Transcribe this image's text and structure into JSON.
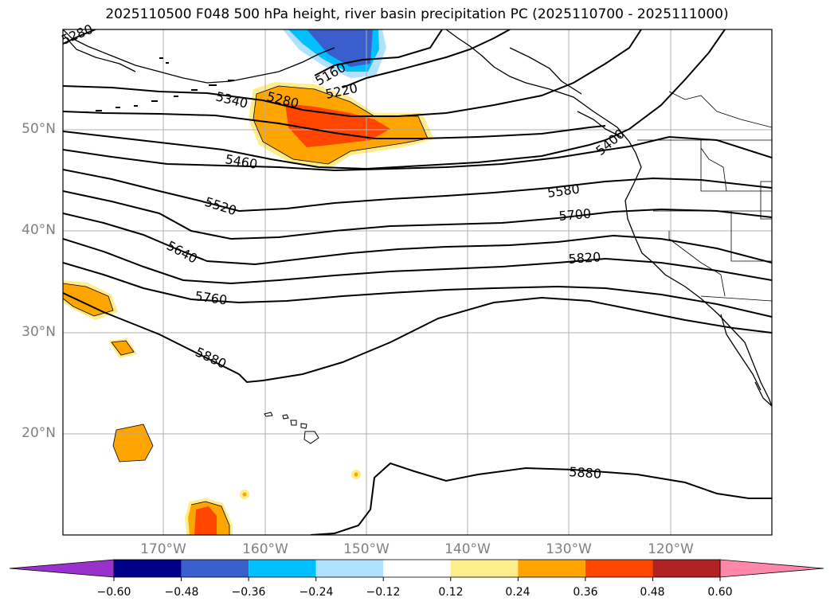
{
  "title": "2025110500 F048 500 hPa height, river basin precipitation PC (2025110700 - 2025111000)",
  "lat_labels": [
    "50°N",
    "40°N",
    "30°N",
    "20°N"
  ],
  "lon_labels": [
    "170°W",
    "160°W",
    "150°W",
    "140°W",
    "130°W",
    "120°W"
  ],
  "contour_labels": [
    "5280",
    "5160",
    "5220",
    "5340",
    "5280",
    "5400",
    "5460",
    "5520",
    "5580",
    "5640",
    "5700",
    "5760",
    "5820",
    "5880",
    "5880"
  ],
  "colorbar": {
    "ticks": [
      "−0.60",
      "−0.48",
      "−0.36",
      "−0.24",
      "−0.12",
      "0.12",
      "0.24",
      "0.36",
      "0.48",
      "0.60"
    ],
    "colors": [
      "#9932cc",
      "#00008b",
      "#3a5fcd",
      "#00bfff",
      "#b0e2ff",
      "#ffffff",
      "#ffec8b",
      "#ffa500",
      "#ff4500",
      "#b22222",
      "#ff88aa"
    ]
  }
}
